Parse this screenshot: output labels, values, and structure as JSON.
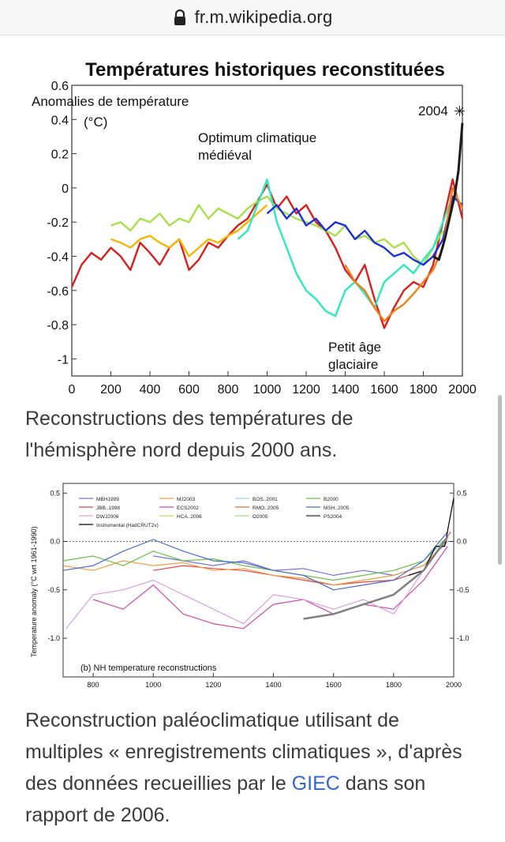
{
  "browser": {
    "url": "fr.m.wikipedia.org"
  },
  "figure1": {
    "chart_data": {
      "type": "line",
      "title": "Températures historiques reconstituées",
      "ylabel_line1": "Anomalies de température",
      "ylabel_line2": "(°C)",
      "xlim": [
        0,
        2000
      ],
      "ylim": [
        -1.1,
        0.6
      ],
      "x_ticks": [
        "0",
        "200",
        "400",
        "600",
        "800",
        "1000",
        "1200",
        "1400",
        "1600",
        "1800",
        "2000"
      ],
      "y_ticks": [
        "0.6",
        "0.4",
        "0.2",
        "0",
        "-0.2",
        "-0.4",
        "-0.6",
        "-0.8",
        "-1"
      ],
      "annotations": {
        "medieval_1": "Optimum climatique",
        "medieval_2": "médiéval",
        "lia_1": "Petit âge",
        "lia_2": "glaciaire",
        "year_2004": "2004"
      },
      "series": [
        {
          "color": "#d81e1e",
          "x": [
            0,
            50,
            100,
            150,
            200,
            250,
            300,
            350,
            400,
            450,
            500,
            550,
            600,
            650,
            700,
            750,
            800,
            850,
            900,
            950,
            1000,
            1050,
            1100,
            1150,
            1200,
            1250,
            1300,
            1350,
            1400,
            1450,
            1500,
            1550,
            1600,
            1650,
            1700,
            1750,
            1800,
            1850,
            1900,
            1950,
            2000
          ],
          "y": [
            -0.58,
            -0.45,
            -0.38,
            -0.42,
            -0.35,
            -0.4,
            -0.48,
            -0.32,
            -0.38,
            -0.45,
            -0.35,
            -0.3,
            -0.48,
            -0.42,
            -0.32,
            -0.35,
            -0.28,
            -0.22,
            -0.18,
            -0.08,
            0.02,
            -0.12,
            -0.05,
            -0.15,
            -0.1,
            -0.2,
            -0.25,
            -0.35,
            -0.48,
            -0.55,
            -0.45,
            -0.65,
            -0.82,
            -0.7,
            -0.6,
            -0.55,
            -0.58,
            -0.45,
            -0.2,
            0.05,
            -0.18
          ]
        },
        {
          "color": "#a8e04a",
          "x": [
            200,
            250,
            300,
            350,
            400,
            450,
            500,
            550,
            600,
            650,
            700,
            750,
            800,
            850,
            900,
            950,
            1000,
            1050,
            1100,
            1150,
            1200,
            1250,
            1300,
            1350,
            1400,
            1450,
            1500,
            1550,
            1600,
            1650,
            1700,
            1750,
            1800,
            1850,
            1900
          ],
          "y": [
            -0.22,
            -0.2,
            -0.25,
            -0.18,
            -0.2,
            -0.15,
            -0.22,
            -0.18,
            -0.2,
            -0.1,
            -0.18,
            -0.12,
            -0.15,
            -0.18,
            -0.12,
            -0.08,
            -0.05,
            -0.12,
            -0.15,
            -0.18,
            -0.2,
            -0.22,
            -0.25,
            -0.28,
            -0.22,
            -0.3,
            -0.28,
            -0.32,
            -0.3,
            -0.35,
            -0.32,
            -0.4,
            -0.45,
            -0.35,
            -0.25
          ]
        },
        {
          "color": "#f2b705",
          "x": [
            200,
            250,
            300,
            350,
            400,
            450,
            500,
            550,
            600,
            650,
            700,
            750,
            800,
            850,
            900,
            950,
            1000
          ],
          "y": [
            -0.3,
            -0.32,
            -0.35,
            -0.3,
            -0.28,
            -0.32,
            -0.35,
            -0.3,
            -0.4,
            -0.35,
            -0.3,
            -0.32,
            -0.28,
            -0.25,
            -0.2,
            -0.15,
            -0.1
          ]
        },
        {
          "color": "#2ee8c0",
          "x": [
            850,
            900,
            950,
            1000,
            1050,
            1100,
            1150,
            1200,
            1250,
            1300,
            1350,
            1400,
            1450,
            1500,
            1550,
            1600,
            1650,
            1700,
            1750,
            1800,
            1850,
            1900,
            1950
          ],
          "y": [
            -0.3,
            -0.25,
            -0.1,
            0.05,
            -0.2,
            -0.35,
            -0.5,
            -0.6,
            -0.65,
            -0.72,
            -0.75,
            -0.6,
            -0.55,
            -0.62,
            -0.7,
            -0.55,
            -0.5,
            -0.45,
            -0.5,
            -0.42,
            -0.35,
            -0.2,
            -0.05
          ]
        },
        {
          "color": "#1d2fd6",
          "x": [
            1000,
            1050,
            1100,
            1150,
            1200,
            1250,
            1300,
            1350,
            1400,
            1450,
            1500,
            1550,
            1600,
            1650,
            1700,
            1750,
            1800,
            1850,
            1900,
            1950,
            2000
          ],
          "y": [
            -0.15,
            -0.1,
            -0.18,
            -0.12,
            -0.22,
            -0.18,
            -0.25,
            -0.2,
            -0.22,
            -0.3,
            -0.25,
            -0.32,
            -0.35,
            -0.4,
            -0.38,
            -0.42,
            -0.45,
            -0.4,
            -0.3,
            -0.05,
            -0.1
          ]
        },
        {
          "color": "#f07f16",
          "x": [
            1400,
            1450,
            1500,
            1550,
            1600,
            1650,
            1700,
            1750,
            1800,
            1850,
            1900,
            1950,
            2000
          ],
          "y": [
            -0.45,
            -0.55,
            -0.6,
            -0.7,
            -0.78,
            -0.72,
            -0.68,
            -0.62,
            -0.55,
            -0.48,
            -0.35,
            0.0,
            -0.12
          ]
        },
        {
          "color": "#1a1a1a",
          "x": [
            1850,
            1880,
            1910,
            1940,
            1960,
            1980,
            2000
          ],
          "y": [
            -0.4,
            -0.42,
            -0.3,
            -0.15,
            -0.05,
            0.1,
            0.38
          ]
        }
      ]
    },
    "caption": "Reconstructions des températures de l'hémisphère nord depuis 2000 ans."
  },
  "figure2": {
    "chart_data": {
      "type": "line",
      "ylabel": "Temperature anomaly (°C wrt 1961-1990)",
      "panel_label": "(b) NH temperature reconstructions",
      "xlim": [
        700,
        2000
      ],
      "ylim": [
        -1.4,
        0.6
      ],
      "x_ticks": [
        "800",
        "1000",
        "1200",
        "1400",
        "1600",
        "1800",
        "2000"
      ],
      "y_ticks_left": [
        "0.5",
        "0.0",
        "-0.5",
        "-1.0"
      ],
      "y_ticks_right": [
        "0.5",
        "0.0",
        "-0.5",
        "-1.0"
      ],
      "legend": [
        {
          "name": "MBH1999",
          "color": "#7b6fd8"
        },
        {
          "name": "MJ2003",
          "color": "#f0a040"
        },
        {
          "name": "BOS..2001",
          "color": "#9cd4f0"
        },
        {
          "name": "B2000",
          "color": "#6bbf4e"
        },
        {
          "name": "JBB..1998",
          "color": "#e04848"
        },
        {
          "name": "ECS2002",
          "color": "#d04aa8"
        },
        {
          "name": "RMO..2005",
          "color": "#e07030"
        },
        {
          "name": "MSH..2005",
          "color": "#4a6ad0"
        },
        {
          "name": "DWJ2006",
          "color": "#d8a0e0"
        },
        {
          "name": "HCA..2006",
          "color": "#d8d060"
        },
        {
          "name": "O2005",
          "color": "#b0d890"
        },
        {
          "name": "PS2004",
          "color": "#808080"
        },
        {
          "name": "Instrumental (HadCRUT2v)",
          "color": "#000000"
        }
      ],
      "series": [
        {
          "name": "MBH1999",
          "color": "#7b6fd8",
          "x": [
            1000,
            1100,
            1200,
            1300,
            1400,
            1500,
            1600,
            1700,
            1800,
            1900,
            1980
          ],
          "y": [
            -0.15,
            -0.2,
            -0.25,
            -0.2,
            -0.3,
            -0.28,
            -0.35,
            -0.3,
            -0.35,
            -0.25,
            0.0
          ]
        },
        {
          "name": "ECS2002",
          "color": "#d04aa8",
          "x": [
            800,
            900,
            1000,
            1100,
            1200,
            1300,
            1400,
            1500,
            1600,
            1700,
            1800,
            1900,
            1980
          ],
          "y": [
            -0.6,
            -0.7,
            -0.45,
            -0.75,
            -0.85,
            -0.9,
            -0.65,
            -0.6,
            -0.75,
            -0.65,
            -0.7,
            -0.4,
            -0.05
          ]
        },
        {
          "name": "DWJ2006",
          "color": "#d8a0e0",
          "x": [
            710,
            800,
            900,
            1000,
            1100,
            1200,
            1300,
            1400,
            1500,
            1600,
            1700,
            1800,
            1900,
            1980
          ],
          "y": [
            -0.9,
            -0.55,
            -0.5,
            -0.4,
            -0.55,
            -0.7,
            -0.85,
            -0.55,
            -0.6,
            -0.7,
            -0.6,
            -0.75,
            -0.3,
            0.05
          ]
        },
        {
          "name": "JBB..1998",
          "color": "#e04848",
          "x": [
            1000,
            1100,
            1200,
            1300,
            1400,
            1500,
            1600,
            1700,
            1800,
            1900,
            1990
          ],
          "y": [
            -0.3,
            -0.25,
            -0.28,
            -0.3,
            -0.35,
            -0.4,
            -0.45,
            -0.42,
            -0.4,
            -0.3,
            0.1
          ]
        },
        {
          "name": "MJ2003",
          "color": "#f0a040",
          "x": [
            700,
            800,
            900,
            1000,
            1100,
            1200,
            1300,
            1400,
            1500,
            1600,
            1700,
            1800,
            1900,
            1980
          ],
          "y": [
            -0.25,
            -0.3,
            -0.2,
            -0.25,
            -0.22,
            -0.3,
            -0.28,
            -0.35,
            -0.38,
            -0.45,
            -0.4,
            -0.35,
            -0.25,
            0.02
          ]
        },
        {
          "name": "B2000",
          "color": "#6bbf4e",
          "x": [
            700,
            800,
            900,
            1000,
            1100,
            1200,
            1300,
            1400,
            1500,
            1600,
            1700,
            1800,
            1900,
            1980
          ],
          "y": [
            -0.2,
            -0.15,
            -0.25,
            -0.1,
            -0.2,
            -0.18,
            -0.25,
            -0.3,
            -0.35,
            -0.4,
            -0.35,
            -0.3,
            -0.2,
            0.05
          ]
        },
        {
          "name": "MSH..2005",
          "color": "#4a6ad0",
          "x": [
            700,
            800,
            900,
            1000,
            1100,
            1200,
            1300,
            1400,
            1500,
            1600,
            1700,
            1800,
            1900,
            1980
          ],
          "y": [
            -0.3,
            -0.25,
            -0.1,
            0.02,
            -0.1,
            -0.2,
            -0.22,
            -0.3,
            -0.35,
            -0.5,
            -0.45,
            -0.4,
            -0.2,
            0.1
          ]
        },
        {
          "name": "Instrumental (HadCRUT2v)",
          "color": "#000000",
          "x": [
            1850,
            1900,
            1940,
            1970,
            2000
          ],
          "y": [
            -0.35,
            -0.3,
            -0.05,
            -0.05,
            0.45
          ]
        },
        {
          "name": "PS2004",
          "color": "#808080",
          "x": [
            1500,
            1600,
            1700,
            1800,
            1900,
            1980
          ],
          "y": [
            -0.8,
            -0.75,
            -0.65,
            -0.55,
            -0.3,
            0.05
          ]
        }
      ]
    },
    "caption_before_link": "Reconstruction paléoclimatique utilisant de multiples « enregistrements climatiques », d'après des données recueillies par le ",
    "caption_link": "GIEC",
    "caption_after_link": " dans son rapport de 2006."
  }
}
